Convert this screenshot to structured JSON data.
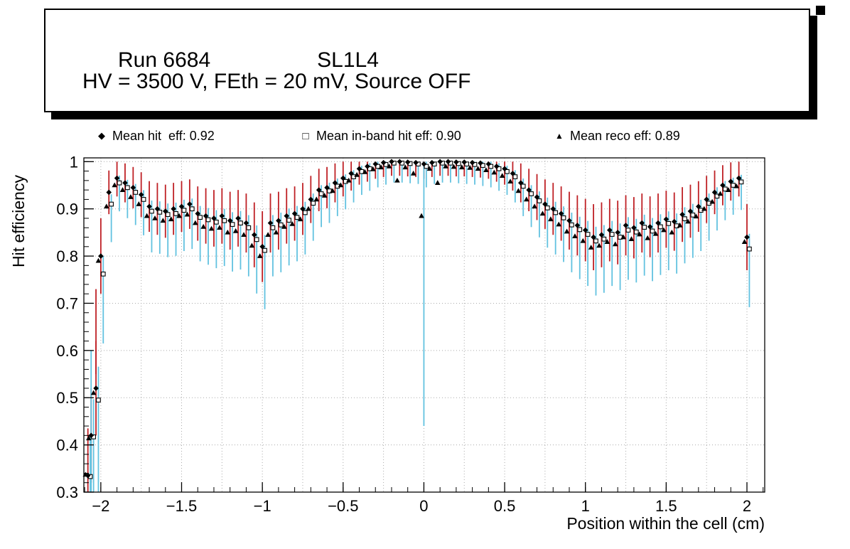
{
  "title_box": {
    "run": "Run 6684",
    "chamber": "SL1L4",
    "conditions": "HV = 3500 V, FEth = 20 mV, Source OFF"
  },
  "legend": {
    "items": [
      {
        "marker": "filled-diamond",
        "label": "Mean hit  eff: 0.92"
      },
      {
        "marker": "open-square",
        "label": "Mean in-band hit eff: 0.90"
      },
      {
        "marker": "filled-triangle",
        "label": "Mean reco eff: 0.89"
      }
    ]
  },
  "chart_data": {
    "type": "scatter",
    "title": "",
    "xlabel": "Position within the cell (cm)",
    "ylabel": "Hit efficiency",
    "xlim": [
      -2.105,
      2.11
    ],
    "ylim": [
      0.3,
      1.008
    ],
    "x_ticks": {
      "major": [
        -2,
        -1.5,
        -1,
        -0.5,
        0,
        0.5,
        1,
        1.5,
        2
      ],
      "labels": [
        "−2",
        "−1.5",
        "−1",
        "−0.5",
        "0",
        "0.5",
        "1",
        "1.5",
        "2"
      ],
      "minor_step": 0.1
    },
    "y_ticks": {
      "major": [
        0.3,
        0.4,
        0.5,
        0.6,
        0.7,
        0.8,
        0.9,
        1.0
      ],
      "labels": [
        "0.3",
        "0.4",
        "0.5",
        "0.6",
        "0.7",
        "0.8",
        "0.9",
        "1"
      ],
      "minor_step": 0.02
    },
    "grid": {
      "x_step": 0.25,
      "y_step": 0.1,
      "style": "dotted",
      "color": "#aaaaaa"
    },
    "legend_position": "top",
    "series": [
      {
        "name": "Mean hit eff",
        "mean": 0.92,
        "marker": "filled-diamond",
        "color": "#000000",
        "error_color": "#bf2025"
      },
      {
        "name": "Mean in-band hit eff",
        "mean": 0.9,
        "marker": "open-square",
        "color": "#000000",
        "error_color": "#62c2e0"
      },
      {
        "name": "Mean reco eff",
        "mean": 0.89,
        "marker": "filled-triangle",
        "color": "#000000",
        "error_color": null
      }
    ],
    "points_format": [
      "x_cm",
      "hit_eff",
      "inband_hit_eff",
      "reco_eff"
    ],
    "points": [
      [
        -2.08,
        0.335,
        0.333,
        0.337
      ],
      [
        -2.06,
        0.42,
        0.417,
        0.414
      ],
      [
        -2.03,
        0.52,
        0.495,
        0.51
      ],
      [
        -2.0,
        0.8,
        0.762,
        0.79
      ],
      [
        -1.95,
        0.935,
        0.91,
        0.905
      ],
      [
        -1.9,
        0.965,
        0.955,
        0.95
      ],
      [
        -1.85,
        0.955,
        0.945,
        0.94
      ],
      [
        -1.8,
        0.945,
        0.935,
        0.925
      ],
      [
        -1.75,
        0.93,
        0.92,
        0.91
      ],
      [
        -1.7,
        0.905,
        0.895,
        0.885
      ],
      [
        -1.65,
        0.9,
        0.893,
        0.88
      ],
      [
        -1.6,
        0.895,
        0.888,
        0.875
      ],
      [
        -1.55,
        0.9,
        0.89,
        0.878
      ],
      [
        -1.5,
        0.905,
        0.897,
        0.885
      ],
      [
        -1.45,
        0.91,
        0.9,
        0.888
      ],
      [
        -1.4,
        0.89,
        0.882,
        0.87
      ],
      [
        -1.35,
        0.885,
        0.877,
        0.862
      ],
      [
        -1.3,
        0.88,
        0.872,
        0.858
      ],
      [
        -1.25,
        0.885,
        0.875,
        0.86
      ],
      [
        -1.2,
        0.875,
        0.867,
        0.85
      ],
      [
        -1.15,
        0.88,
        0.87,
        0.853
      ],
      [
        -1.1,
        0.87,
        0.86,
        0.845
      ],
      [
        -1.05,
        0.845,
        0.835,
        0.822
      ],
      [
        -1.0,
        0.82,
        0.812,
        0.8
      ],
      [
        -0.95,
        0.87,
        0.86,
        0.845
      ],
      [
        -0.9,
        0.875,
        0.866,
        0.85
      ],
      [
        -0.85,
        0.885,
        0.876,
        0.862
      ],
      [
        -0.8,
        0.89,
        0.882,
        0.868
      ],
      [
        -0.75,
        0.9,
        0.892,
        0.878
      ],
      [
        -0.7,
        0.92,
        0.912,
        0.9
      ],
      [
        -0.65,
        0.94,
        0.932,
        0.92
      ],
      [
        -0.6,
        0.945,
        0.938,
        0.928
      ],
      [
        -0.55,
        0.955,
        0.948,
        0.938
      ],
      [
        -0.5,
        0.965,
        0.958,
        0.95
      ],
      [
        -0.45,
        0.975,
        0.968,
        0.96
      ],
      [
        -0.4,
        0.985,
        0.979,
        0.972
      ],
      [
        -0.35,
        0.99,
        0.985,
        0.978
      ],
      [
        -0.3,
        0.995,
        0.99,
        0.984
      ],
      [
        -0.25,
        0.998,
        0.994,
        0.988
      ],
      [
        -0.2,
        1.0,
        0.997,
        0.99
      ],
      [
        -0.15,
        1.0,
        0.997,
        0.96
      ],
      [
        -0.1,
        0.999,
        0.996,
        0.988
      ],
      [
        -0.05,
        0.998,
        0.995,
        0.975
      ],
      [
        0.0,
        0.995,
        0.99,
        0.885
      ],
      [
        0.05,
        0.998,
        0.995,
        0.985
      ],
      [
        0.1,
        1.0,
        0.997,
        0.955
      ],
      [
        0.15,
        1.0,
        0.997,
        0.99
      ],
      [
        0.2,
        0.999,
        0.996,
        0.989
      ],
      [
        0.25,
        0.999,
        0.995,
        0.988
      ],
      [
        0.3,
        0.998,
        0.994,
        0.987
      ],
      [
        0.35,
        0.997,
        0.992,
        0.985
      ],
      [
        0.4,
        0.995,
        0.99,
        0.982
      ],
      [
        0.45,
        0.99,
        0.985,
        0.977
      ],
      [
        0.5,
        0.985,
        0.979,
        0.97
      ],
      [
        0.55,
        0.975,
        0.968,
        0.958
      ],
      [
        0.6,
        0.955,
        0.948,
        0.938
      ],
      [
        0.65,
        0.94,
        0.932,
        0.92
      ],
      [
        0.7,
        0.925,
        0.917,
        0.905
      ],
      [
        0.75,
        0.91,
        0.902,
        0.89
      ],
      [
        0.8,
        0.9,
        0.892,
        0.878
      ],
      [
        0.85,
        0.89,
        0.881,
        0.867
      ],
      [
        0.9,
        0.875,
        0.866,
        0.852
      ],
      [
        0.95,
        0.865,
        0.856,
        0.842
      ],
      [
        1.0,
        0.855,
        0.846,
        0.832
      ],
      [
        1.05,
        0.84,
        0.832,
        0.818
      ],
      [
        1.1,
        0.845,
        0.836,
        0.822
      ],
      [
        1.15,
        0.855,
        0.846,
        0.83
      ],
      [
        1.2,
        0.85,
        0.84,
        0.825
      ],
      [
        1.25,
        0.865,
        0.855,
        0.84
      ],
      [
        1.3,
        0.86,
        0.851,
        0.836
      ],
      [
        1.35,
        0.87,
        0.861,
        0.846
      ],
      [
        1.4,
        0.862,
        0.853,
        0.838
      ],
      [
        1.45,
        0.87,
        0.862,
        0.847
      ],
      [
        1.5,
        0.878,
        0.869,
        0.855
      ],
      [
        1.55,
        0.873,
        0.864,
        0.85
      ],
      [
        1.6,
        0.888,
        0.879,
        0.865
      ],
      [
        1.65,
        0.895,
        0.887,
        0.873
      ],
      [
        1.7,
        0.905,
        0.897,
        0.884
      ],
      [
        1.75,
        0.92,
        0.912,
        0.9
      ],
      [
        1.8,
        0.935,
        0.927,
        0.915
      ],
      [
        1.85,
        0.95,
        0.942,
        0.932
      ],
      [
        1.9,
        0.958,
        0.95,
        0.94
      ],
      [
        1.95,
        0.965,
        0.957,
        0.948
      ],
      [
        2.0,
        0.84,
        0.815,
        0.83
      ]
    ],
    "error_rules": {
      "red": {
        "base": 0.03,
        "scale": 0.25,
        "cap": 0.1
      },
      "cyan_up": {
        "base": 0.01,
        "scale": 0.12
      },
      "cyan_down": {
        "base": 0.04,
        "scale": 0.45,
        "cap": 0.2
      }
    },
    "special_error_bars": [
      {
        "x": 0.0,
        "color": "cyan",
        "lo": 0.44,
        "hi": 1.0
      },
      {
        "x": -2.03,
        "color": "red",
        "lo": 0.55,
        "hi": 0.73
      },
      {
        "x": -2.06,
        "color": "cyan",
        "lo": 0.3,
        "hi": 0.6
      }
    ]
  }
}
